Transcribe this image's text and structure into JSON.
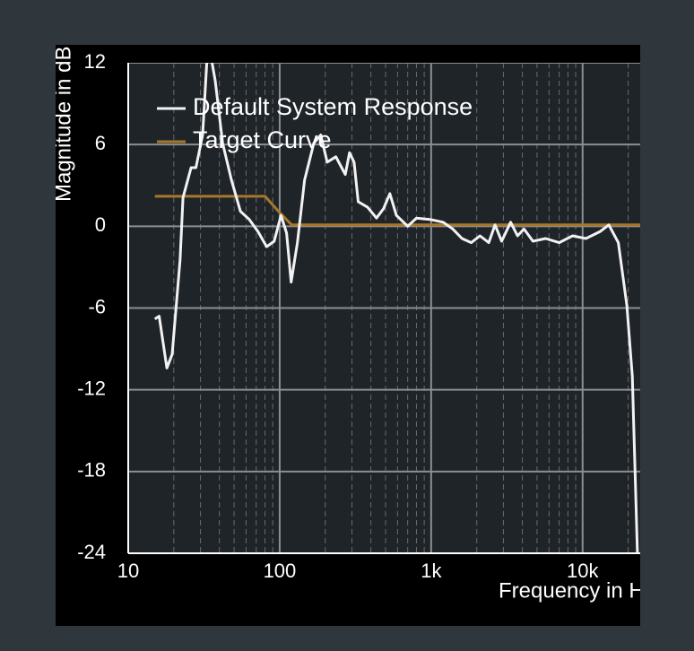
{
  "chart_data": {
    "type": "line",
    "xlabel": "Frequency in Hz",
    "ylabel": "Magnitude in dB",
    "xscale": "log",
    "xlim": [
      10,
      24000
    ],
    "ylim": [
      -24,
      12
    ],
    "xticks": [
      10,
      100,
      {
        "value": 1000,
        "label": "1k"
      },
      {
        "value": 10000,
        "label": "10k"
      }
    ],
    "xminorticks": [
      20,
      30,
      40,
      50,
      60,
      70,
      80,
      90,
      200,
      300,
      400,
      500,
      600,
      700,
      800,
      900,
      2000,
      3000,
      4000,
      5000,
      6000,
      7000,
      8000,
      9000,
      20000
    ],
    "yticks": [
      12,
      6,
      0,
      -6,
      -12,
      -18,
      -24
    ],
    "grid": true,
    "legend": "upper-left",
    "series": [
      {
        "name": "Default System Response",
        "color": "#f2f2f2",
        "x": [
          15,
          16,
          18,
          19.5,
          22,
          23,
          26,
          28,
          31,
          33,
          35,
          37.5,
          42,
          48,
          55,
          63,
          72,
          82,
          92,
          102,
          111,
          119,
          131,
          146,
          168,
          187,
          206,
          235,
          271,
          289,
          310,
          330,
          380,
          436,
          485,
          534,
          590,
          700,
          800,
          980,
          1200,
          1390,
          1600,
          1840,
          2100,
          2400,
          2640,
          2920,
          3350,
          3720,
          4100,
          4700,
          5700,
          7000,
          8600,
          10500,
          13000,
          14900,
          17200,
          19600,
          21300,
          23000
        ],
        "values": [
          -6.8,
          -6.6,
          -10.4,
          -9.4,
          -2.5,
          2.1,
          4.3,
          4.3,
          6.7,
          12,
          12.6,
          10.7,
          6.1,
          3.4,
          1.1,
          0.5,
          -0.4,
          -1.5,
          -1.1,
          0.8,
          -0.5,
          -4.1,
          -1.2,
          3.4,
          6.1,
          6.7,
          4.7,
          5.1,
          3.8,
          5.4,
          4.7,
          1.8,
          1.4,
          0.6,
          1.3,
          2.4,
          0.8,
          0,
          0.6,
          0.5,
          0.3,
          -0.2,
          -0.9,
          -1.2,
          -0.7,
          -1.2,
          0.1,
          -1.1,
          0.3,
          -0.7,
          -0.2,
          -1.1,
          -0.9,
          -1.2,
          -0.7,
          -0.9,
          -0.4,
          0.1,
          -1.2,
          -5.8,
          -11,
          -24
        ]
      },
      {
        "name": "Target Curve",
        "color": "#a8782a",
        "x": [
          15,
          80,
          100,
          120,
          24000
        ],
        "values": [
          2.2,
          2.2,
          1,
          0.1,
          0.1
        ]
      }
    ]
  }
}
